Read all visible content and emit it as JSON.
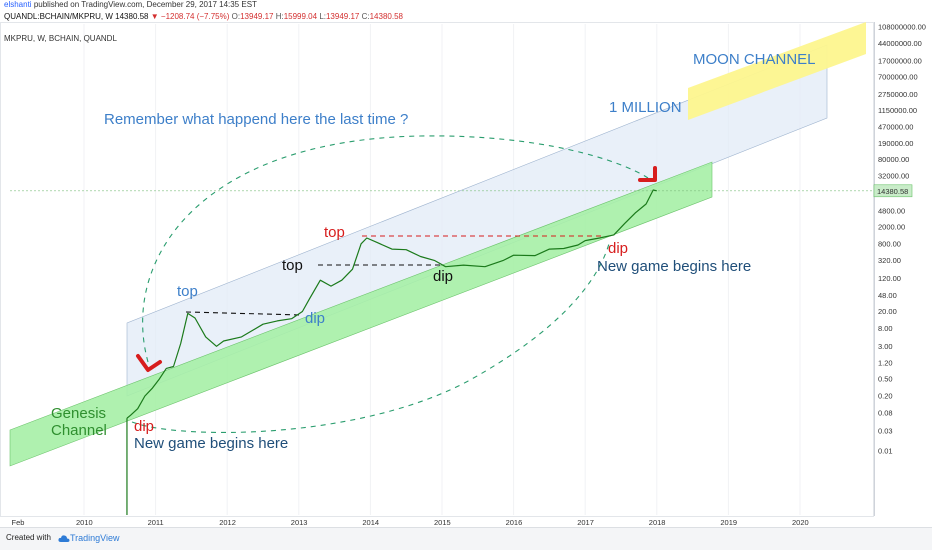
{
  "header": {
    "author": "elshanti",
    "published_text": "published on TradingView.com, December 29, 2017 14:35 EST"
  },
  "ohlc": {
    "symbol": "QUANDL:BCHAIN/MKPRU, W",
    "last": "14380.58",
    "change": "−1208.74 (−7.75%)",
    "open_label": "O:",
    "open": "13949.17",
    "high_label": "H:",
    "high": "15999.04",
    "low_label": "L:",
    "low": "13949.17",
    "close_label": "C:",
    "close": "14380.58"
  },
  "series_label": "MKPRU, W, BCHAIN, QUANDL",
  "price_tag": "14380.58",
  "annotations": {
    "remember": "Remember what happend here the last time ?",
    "one_million": "1 MILLION",
    "moon_channel": "MOON CHANNEL",
    "genesis_line1": "Genesis",
    "genesis_line2": "Channel",
    "dip_2010": "dip",
    "new_game_2010": "New game begins here",
    "top_2011": "top",
    "dip_2012": "dip",
    "top_2013a": "top",
    "top_2013b": "top",
    "dip_2015": "dip",
    "dip_2017": "dip",
    "new_game_2017": "New game begins here"
  },
  "colors": {
    "price_line": "#1b7a1b",
    "genesis_channel": "#a6efa6",
    "upper_channel": "#e1ebf7",
    "moon_channel": "#fdf68e",
    "annotation_blue": "#3d7fc9",
    "annotation_red": "#d71d1d",
    "annotation_green": "#2f8f2f",
    "annotation_navy": "#1f4e79",
    "arc": "#2a9d6e"
  },
  "footer": {
    "created_with": "Created with",
    "brand": "TradingView"
  },
  "chart_data": {
    "type": "line",
    "title": "MKPRU, W, BCHAIN, QUANDL",
    "xlabel": "",
    "ylabel": "",
    "y_scale": "log",
    "x_ticks": [
      "Feb",
      "2010",
      "2011",
      "2012",
      "2013",
      "2014",
      "2015",
      "2016",
      "2017",
      "2018",
      "2019",
      "2020"
    ],
    "y_ticks": [
      "108000000.00",
      "44000000.00",
      "17000000.00",
      "7000000.00",
      "2750000.00",
      "1150000.00",
      "470000.00",
      "190000.00",
      "80000.00",
      "32000.00",
      "14380.58",
      "4800.00",
      "2000.00",
      "800.00",
      "320.00",
      "120.00",
      "48.00",
      "20.00",
      "8.00",
      "3.00",
      "1.20",
      "0.50",
      "0.20",
      "0.08",
      "0.03",
      "0.01"
    ],
    "series": [
      {
        "x": [
          2010.6,
          2010.65,
          2010.75,
          2010.85,
          2010.95,
          2011.05,
          2011.15,
          2011.25,
          2011.35,
          2011.45,
          2011.55,
          2011.7,
          2011.85,
          2011.95,
          2012.2,
          2012.5,
          2012.7,
          2012.9,
          2013.05,
          2013.15,
          2013.3,
          2013.45,
          2013.6,
          2013.75,
          2013.87,
          2013.95,
          2014.1,
          2014.3,
          2014.5,
          2014.7,
          2014.9,
          2015.05,
          2015.3,
          2015.6,
          2015.85,
          2016.0,
          2016.3,
          2016.5,
          2016.7,
          2016.9,
          2017.0,
          2017.2,
          2017.4,
          2017.55,
          2017.7,
          2017.85,
          2017.95,
          2018.0
        ],
        "values": [
          0.06,
          0.07,
          0.1,
          0.2,
          0.3,
          0.5,
          0.9,
          1.0,
          3.5,
          18,
          14,
          5,
          3,
          4,
          5,
          10,
          12,
          13.5,
          20,
          40,
          110,
          80,
          110,
          200,
          800,
          1100,
          850,
          600,
          580,
          400,
          320,
          230,
          250,
          230,
          320,
          430,
          420,
          600,
          620,
          750,
          950,
          1100,
          1300,
          2400,
          4300,
          7000,
          15000,
          14380.58
        ]
      }
    ],
    "ylim": [
      0.005,
      160000000
    ],
    "xlim": [
      2009.1,
      2020.9
    ],
    "grid": true,
    "legend": "none"
  }
}
